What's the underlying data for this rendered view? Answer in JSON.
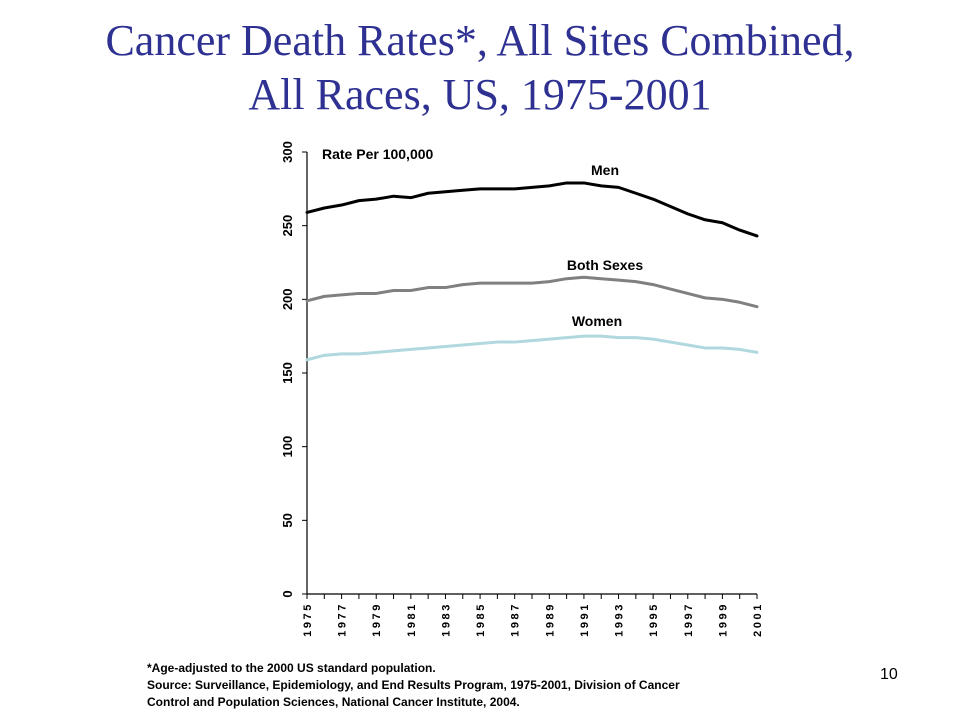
{
  "slide": {
    "title_line1": "Cancer Death Rates*, All Sites Combined,",
    "title_line2": "All Races, US, 1975-2001",
    "footnote_line1": "*Age-adjusted to the 2000 US standard population.",
    "footnote_line2": "Source: Surveillance, Epidemiology, and End Results Program, 1975-2001, Division of Cancer",
    "footnote_line3": "Control and Population Sciences, National Cancer Institute, 2004.",
    "page_number": "10",
    "title_color": "#2e3192"
  },
  "chart_data": {
    "type": "line",
    "title": "",
    "ylabel": "Rate Per 100,000",
    "xlabel": "",
    "ylim": [
      0,
      300
    ],
    "yticks": [
      0,
      50,
      100,
      150,
      200,
      250,
      300
    ],
    "x": [
      1975,
      1976,
      1977,
      1978,
      1979,
      1980,
      1981,
      1982,
      1983,
      1984,
      1985,
      1986,
      1987,
      1988,
      1989,
      1990,
      1991,
      1992,
      1993,
      1994,
      1995,
      1996,
      1997,
      1998,
      1999,
      2000,
      2001
    ],
    "xtick_labels": [
      "1975",
      "1977",
      "1979",
      "1981",
      "1983",
      "1985",
      "1987",
      "1989",
      "1991",
      "1993",
      "1995",
      "1997",
      "1999",
      "2001"
    ],
    "grid": false,
    "legend": "inline labels above lines",
    "series": [
      {
        "name": "Men",
        "color": "#000000",
        "values": [
          259,
          262,
          264,
          267,
          268,
          270,
          269,
          272,
          273,
          274,
          275,
          275,
          275,
          276,
          277,
          279,
          279,
          277,
          276,
          272,
          268,
          263,
          258,
          254,
          252,
          247,
          243
        ]
      },
      {
        "name": "Both Sexes",
        "color": "#808080",
        "values": [
          199,
          202,
          203,
          204,
          204,
          206,
          206,
          208,
          208,
          210,
          211,
          211,
          211,
          211,
          212,
          214,
          215,
          214,
          213,
          212,
          210,
          207,
          204,
          201,
          200,
          198,
          195
        ]
      },
      {
        "name": "Women",
        "color": "#b0d8de",
        "values": [
          159,
          162,
          163,
          163,
          164,
          165,
          166,
          167,
          168,
          169,
          170,
          171,
          171,
          172,
          173,
          174,
          175,
          175,
          174,
          174,
          173,
          171,
          169,
          167,
          167,
          166,
          164
        ]
      }
    ]
  }
}
